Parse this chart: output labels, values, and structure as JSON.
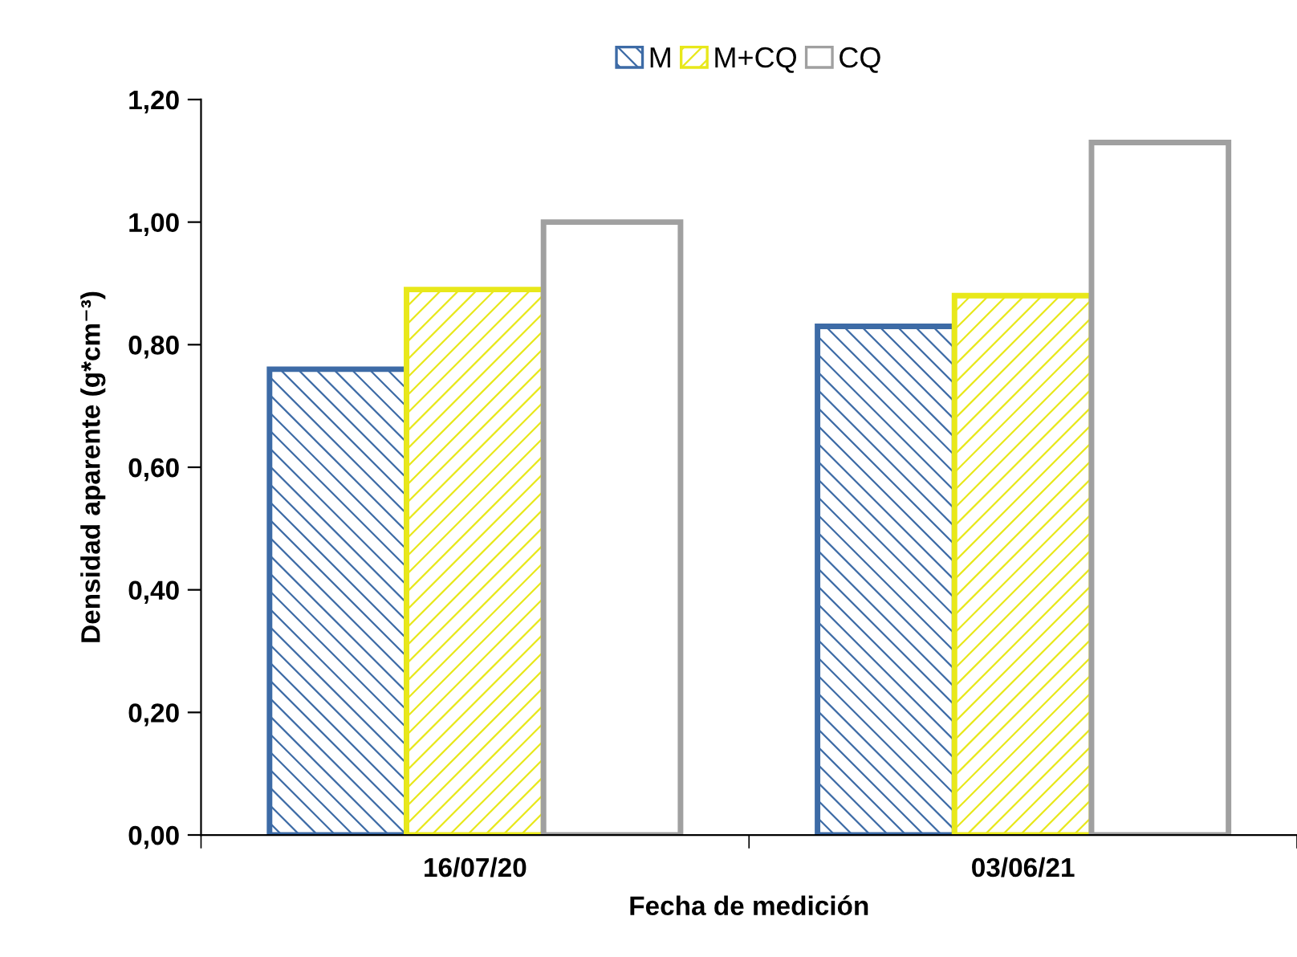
{
  "chart_data": {
    "type": "bar",
    "xlabel": "Fecha de medición",
    "ylabel": "Densidad aparente (g*cm⁻³)",
    "categories": [
      "16/07/20",
      "03/06/21"
    ],
    "series": [
      {
        "name": "M",
        "color": "#3d6ba6",
        "values": [
          0.76,
          0.83
        ]
      },
      {
        "name": "M+CQ",
        "color": "#e8e81a",
        "values": [
          0.89,
          0.88
        ]
      },
      {
        "name": "CQ",
        "color": "#a0a0a0",
        "values": [
          1.0,
          1.13
        ]
      }
    ],
    "ylim": [
      0,
      1.2
    ],
    "yticks": [
      {
        "value": 0,
        "label": "0,00"
      },
      {
        "value": 0.2,
        "label": "0,20"
      },
      {
        "value": 0.4,
        "label": "0,40"
      },
      {
        "value": 0.6,
        "label": "0,60"
      },
      {
        "value": 0.8,
        "label": "0,80"
      },
      {
        "value": 1.0,
        "label": "1,00"
      },
      {
        "value": 1.2,
        "label": "1,20"
      }
    ],
    "grid": false,
    "legend": "top"
  }
}
